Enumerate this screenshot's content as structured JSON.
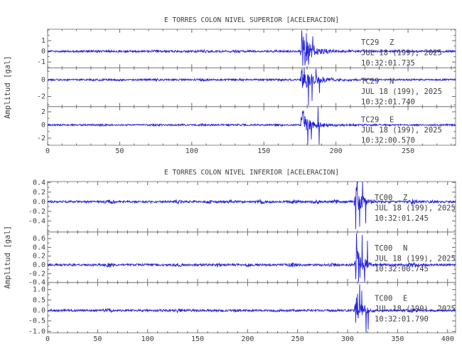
{
  "app": {
    "name": "seismic-accelerograph-viewer",
    "background": "#ffffff"
  },
  "colors": {
    "trace": "#2222dd",
    "frame": "#929292",
    "tick": "#666666",
    "text": "#3d3d3d"
  },
  "chart_data": [
    {
      "type": "line",
      "title": "E TORRES COLON NIVEL SUPERIOR [ACELERACION]",
      "ylabel": "Amplitud [gal]",
      "xlabel": "",
      "xlim": [
        0,
        283
      ],
      "xticks": [
        0,
        50,
        100,
        150,
        200,
        250
      ],
      "x_minor_step": 10,
      "grid": false,
      "legend": "none",
      "traces": [
        {
          "station": "TC29",
          "channel": "Z",
          "date": "JUL 18 (199), 2025",
          "time": "10:32:01.735",
          "ylim": [
            -1.55,
            2.07
          ],
          "yticks": [
            {
              "v": 1,
              "label": "1"
            },
            {
              "v": 0,
              "label": "0"
            },
            {
              "v": -1,
              "label": "-1"
            }
          ],
          "y_minor_step": 0.5,
          "noise_amp": 0.09,
          "bumps": [
            [
              35,
              0.05,
              6
            ],
            [
              55,
              0.03,
              5
            ],
            [
              76,
              0.05,
              6
            ],
            [
              108,
              0.06,
              7
            ],
            [
              118,
              0.04,
              4
            ],
            [
              131,
              0.05,
              6
            ],
            [
              160,
              0.04,
              5
            ]
          ],
          "event": {
            "onset": 175,
            "peak": 1.9,
            "tau": 5.5,
            "coda_frac": 0.18,
            "coda_tau": 18
          },
          "spikes": [
            [
              176.2,
              1.98
            ],
            [
              177.0,
              -1.35
            ],
            [
              179.5,
              1.7
            ],
            [
              181,
              -1.25
            ],
            [
              184,
              1.4
            ]
          ],
          "seed": 11
        },
        {
          "station": "TC29",
          "channel": "N",
          "date": "JUL 18 (199), 2025",
          "time": "10:32:01.740",
          "ylim": [
            -3.21,
            1.42
          ],
          "yticks": [
            {
              "v": 0,
              "label": "0"
            },
            {
              "v": -2,
              "label": "-2"
            }
          ],
          "y_minor_step": 1,
          "noise_amp": 0.1,
          "bumps": [
            [
              35,
              0.05,
              6
            ],
            [
              50,
              0.03,
              4
            ],
            [
              75,
              0.05,
              6
            ],
            [
              108,
              0.06,
              7
            ],
            [
              130,
              0.05,
              6
            ],
            [
              160,
              0.04,
              5
            ]
          ],
          "event": {
            "onset": 175,
            "peak": 1.45,
            "tau": 7.5,
            "coda_frac": 0.18,
            "coda_tau": 22
          },
          "spikes": [
            [
              178,
              1.38
            ],
            [
              181,
              -3.1
            ],
            [
              183.5,
              -2.55
            ],
            [
              186,
              1.33
            ],
            [
              188.5,
              -1.6
            ]
          ],
          "seed": 22
        },
        {
          "station": "TC29",
          "channel": "E",
          "date": "JUL 18 (199), 2025",
          "time": "10:32:00.570",
          "ylim": [
            -3.08,
            2.79
          ],
          "yticks": [
            {
              "v": 2,
              "label": "2"
            },
            {
              "v": 0,
              "label": "0"
            },
            {
              "v": -2,
              "label": "-2"
            }
          ],
          "y_minor_step": 1,
          "noise_amp": 0.12,
          "bumps": [
            [
              36,
              0.06,
              6
            ],
            [
              76,
              0.06,
              6
            ],
            [
              109,
              0.07,
              7
            ],
            [
              131,
              0.06,
              6
            ],
            [
              161,
              0.05,
              5
            ]
          ],
          "event": {
            "onset": 175,
            "peak": 2.3,
            "tau": 6,
            "coda_frac": 0.15,
            "coda_tau": 20
          },
          "spikes": [
            [
              177.5,
              2.2
            ],
            [
              180.5,
              -2.95
            ],
            [
              183,
              -2.2
            ],
            [
              187.5,
              2.7
            ],
            [
              188.3,
              -3.0
            ]
          ],
          "seed": 33
        }
      ]
    },
    {
      "type": "line",
      "title": "E TORRES COLON NIVEL INFERIOR [ACELERACION]",
      "ylabel": "Amplitud [gal]",
      "xlabel": "",
      "xlim": [
        0,
        408
      ],
      "xticks": [
        0,
        50,
        100,
        150,
        200,
        250,
        300,
        350,
        400
      ],
      "x_minor_step": 10,
      "grid": false,
      "legend": "none",
      "traces": [
        {
          "station": "TC00",
          "channel": "Z",
          "date": "JUL 18 (199), 2025",
          "time": "10:32:01.245",
          "ylim": [
            -0.63,
            0.42
          ],
          "yticks": [
            {
              "v": 0.4,
              "label": "0.4"
            },
            {
              "v": 0.2,
              "label": "0.2"
            },
            {
              "v": 0.0,
              "label": "0.0"
            },
            {
              "v": -0.2,
              "label": "-0.2"
            },
            {
              "v": -0.4,
              "label": "-0.4"
            }
          ],
          "y_minor_step": 0.1,
          "noise_amp": 0.022,
          "bumps": [
            [
              62,
              0.035,
              7
            ],
            [
              130,
              0.03,
              6
            ],
            [
              162,
              0.025,
              5
            ],
            [
              182,
              0.025,
              5
            ],
            [
              214,
              0.03,
              6
            ],
            [
              246,
              0.03,
              6
            ],
            [
              268,
              0.025,
              5
            ],
            [
              287,
              0.03,
              5
            ],
            [
              365,
              0.045,
              9
            ],
            [
              385,
              0.02,
              5
            ]
          ],
          "event": {
            "onset": 306.5,
            "peak": 0.46,
            "tau": 5,
            "coda_frac": 0.15,
            "coda_tau": 14
          },
          "spikes": [
            [
              308,
              -0.57
            ],
            [
              309.5,
              0.44
            ],
            [
              312,
              -0.52
            ],
            [
              315,
              0.42
            ],
            [
              318,
              -0.45
            ]
          ],
          "seed": 44
        },
        {
          "station": "TC00",
          "channel": "N",
          "date": "JUL 18 (199), 2025",
          "time": "10:32:00.745",
          "ylim": [
            -0.4,
            0.75
          ],
          "yticks": [
            {
              "v": 0.6,
              "label": "0.6"
            },
            {
              "v": 0.4,
              "label": "0.4"
            },
            {
              "v": 0.2,
              "label": "0.2"
            },
            {
              "v": 0.0,
              "label": "0.0"
            },
            {
              "v": -0.2,
              "label": "-0.2"
            },
            {
              "v": -0.4,
              "label": "-0.4"
            }
          ],
          "y_minor_step": 0.1,
          "noise_amp": 0.024,
          "bumps": [
            [
              62,
              0.04,
              7
            ],
            [
              130,
              0.035,
              6
            ],
            [
              170,
              0.025,
              5
            ],
            [
              200,
              0.025,
              5
            ],
            [
              245,
              0.03,
              6
            ],
            [
              285,
              0.025,
              5
            ],
            [
              365,
              0.04,
              8
            ]
          ],
          "event": {
            "onset": 306.5,
            "peak": 0.62,
            "tau": 5.5,
            "coda_frac": 0.15,
            "coda_tau": 14
          },
          "spikes": [
            [
              309,
              0.72
            ],
            [
              311,
              -0.38
            ],
            [
              314.5,
              0.68
            ],
            [
              317,
              -0.4
            ],
            [
              320,
              0.55
            ]
          ],
          "seed": 55
        },
        {
          "station": "TC00",
          "channel": "E",
          "date": "JUL 18 (199), 2025",
          "time": "10:32:01.790",
          "ylim": [
            -1.07,
            1.34
          ],
          "yticks": [
            {
              "v": 1.0,
              "label": "1.0"
            },
            {
              "v": 0.5,
              "label": "0.5"
            },
            {
              "v": 0.0,
              "label": "0.0"
            },
            {
              "v": -0.5,
              "label": "-0.5"
            },
            {
              "v": -1.0,
              "label": "-1.0"
            }
          ],
          "y_minor_step": 0.25,
          "noise_amp": 0.05,
          "bumps": [
            [
              62,
              0.05,
              7
            ],
            [
              130,
              0.05,
              6
            ],
            [
              190,
              0.04,
              5
            ],
            [
              230,
              0.04,
              5
            ],
            [
              285,
              0.04,
              5
            ],
            [
              365,
              0.06,
              8
            ]
          ],
          "event": {
            "onset": 306.5,
            "peak": 1.0,
            "tau": 5.5,
            "coda_frac": 0.12,
            "coda_tau": 14
          },
          "spikes": [
            [
              310,
              0.8
            ],
            [
              312,
              1.25
            ],
            [
              314,
              0.95
            ],
            [
              318.5,
              -1.05
            ],
            [
              320.5,
              -0.9
            ]
          ],
          "seed": 66
        }
      ]
    }
  ]
}
